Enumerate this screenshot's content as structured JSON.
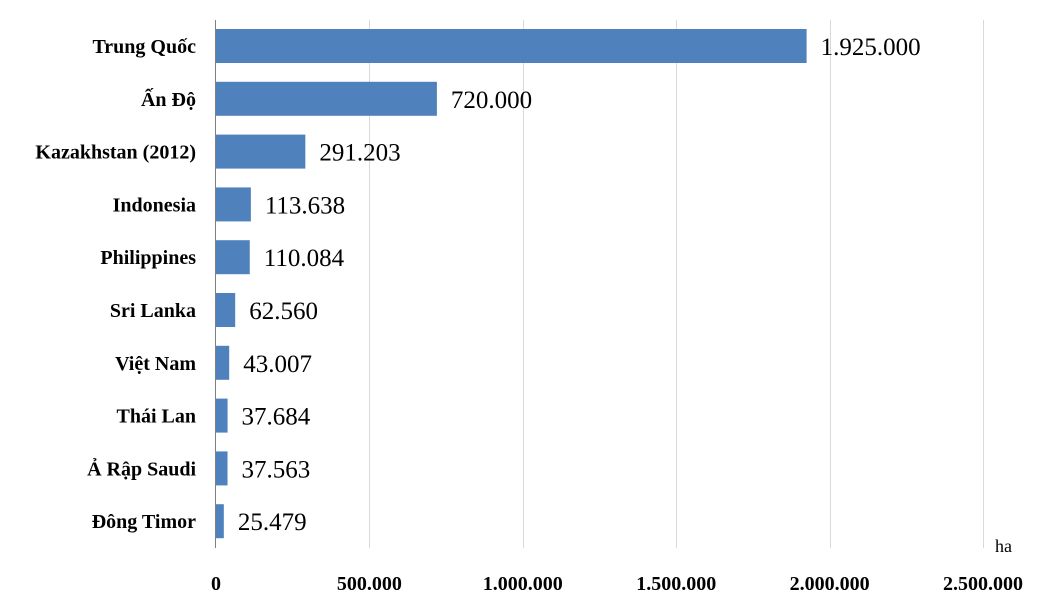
{
  "chart_data": {
    "type": "bar",
    "orientation": "horizontal",
    "categories": [
      "Trung Quốc",
      "Ấn Độ",
      "Kazakhstan (2012)",
      "Indonesia",
      "Philippines",
      "Sri Lanka",
      "Việt Nam",
      "Thái Lan",
      "Ả Rập Saudi",
      "Đông Timor"
    ],
    "values": [
      1925000,
      720000,
      291203,
      113638,
      110084,
      62560,
      43007,
      37684,
      37563,
      25479
    ],
    "data_labels": [
      "1.925.000",
      "720.000",
      "291.203",
      "113.638",
      "110.084",
      "62.560",
      "43.007",
      "37.684",
      "37.563",
      "25.479"
    ],
    "xlim": [
      0,
      2500000
    ],
    "x_ticks": [
      0,
      500000,
      1000000,
      1500000,
      2000000,
      2500000
    ],
    "x_tick_labels": [
      "0",
      "500.000",
      "1.000.000",
      "1.500.000",
      "2.000.000",
      "2.500.000"
    ],
    "xlabel": "ha",
    "ylabel": "",
    "title": "",
    "grid": "vertical",
    "bar_color": "#4f81bd",
    "grid_color": "#d9d9d9"
  }
}
